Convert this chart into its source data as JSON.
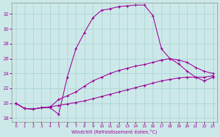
{
  "xlabel": "Windchill (Refroidissement éolien,°C)",
  "background_color": "#cde8e8",
  "line_color": "#990099",
  "grid_color": "#aad4d4",
  "xlim": [
    -0.5,
    23.5
  ],
  "ylim": [
    17.5,
    33.5
  ],
  "xticks": [
    0,
    1,
    2,
    3,
    4,
    5,
    6,
    7,
    8,
    9,
    10,
    11,
    12,
    13,
    14,
    15,
    16,
    17,
    18,
    19,
    20,
    21,
    22,
    23
  ],
  "yticks": [
    18,
    20,
    22,
    24,
    26,
    28,
    30,
    32
  ],
  "line1_x": [
    0,
    1,
    2,
    3,
    4,
    5,
    6,
    7,
    8,
    9,
    10,
    11,
    12,
    13,
    14,
    15,
    16,
    17,
    18,
    19,
    20,
    21,
    22,
    23
  ],
  "line1_y": [
    20.0,
    19.3,
    19.2,
    19.4,
    19.4,
    18.5,
    23.5,
    27.3,
    29.5,
    31.5,
    32.5,
    32.7,
    33.0,
    33.1,
    33.2,
    33.2,
    31.8,
    27.3,
    26.0,
    25.3,
    24.3,
    23.5,
    23.0,
    23.5
  ],
  "line2_x": [
    0,
    1,
    2,
    3,
    4,
    5,
    6,
    7,
    8,
    9,
    10,
    11,
    12,
    13,
    14,
    15,
    16,
    17,
    18,
    19,
    20,
    21,
    22,
    23
  ],
  "line2_y": [
    20.0,
    19.3,
    19.2,
    19.4,
    19.5,
    20.5,
    21.0,
    21.5,
    22.3,
    23.0,
    23.5,
    24.0,
    24.4,
    24.7,
    25.0,
    25.2,
    25.5,
    25.8,
    26.0,
    25.8,
    25.5,
    24.8,
    24.3,
    24.0
  ],
  "line3_x": [
    0,
    1,
    2,
    3,
    4,
    5,
    6,
    7,
    8,
    9,
    10,
    11,
    12,
    13,
    14,
    15,
    16,
    17,
    18,
    19,
    20,
    21,
    22,
    23
  ],
  "line3_y": [
    20.0,
    19.3,
    19.2,
    19.4,
    19.5,
    19.7,
    19.9,
    20.1,
    20.3,
    20.6,
    20.9,
    21.2,
    21.5,
    21.8,
    22.1,
    22.4,
    22.7,
    23.0,
    23.2,
    23.4,
    23.5,
    23.5,
    23.5,
    23.7
  ]
}
